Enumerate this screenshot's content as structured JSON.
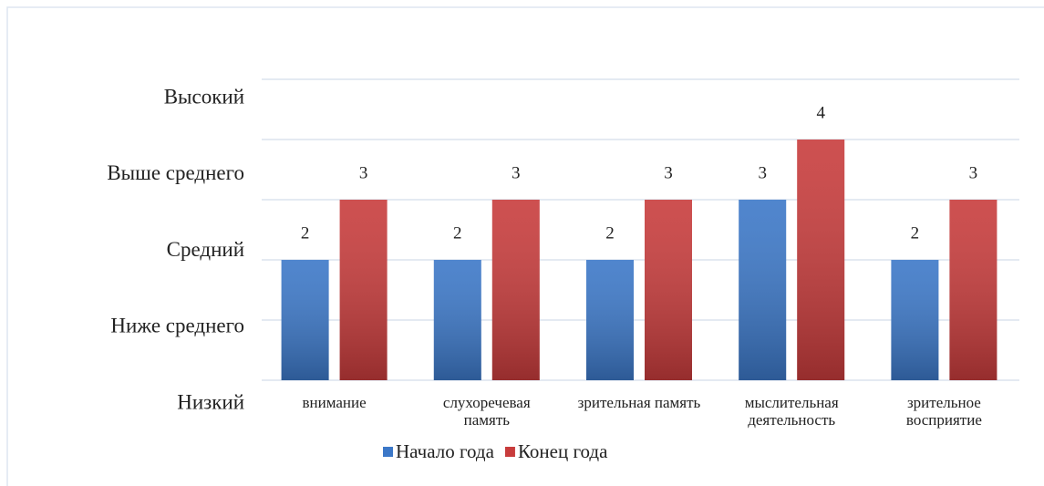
{
  "chart_data": {
    "type": "bar",
    "categories": [
      "внимание",
      "слухоречевая память",
      "зрительная память",
      "мыслительная деятельность",
      "зрительное восприятие"
    ],
    "series": [
      {
        "name": "Начало года",
        "color": "#3c78c8",
        "values": [
          2,
          2,
          2,
          3,
          2
        ]
      },
      {
        "name": "Конец года",
        "color": "#c83c3c",
        "values": [
          3,
          3,
          3,
          4,
          3
        ]
      }
    ],
    "ylim": [
      0,
      5
    ],
    "yticks": [
      {
        "value": 0,
        "label": "Низкий"
      },
      {
        "value": 1,
        "label": "Ниже среднего"
      },
      {
        "value": 2,
        "label": "Средний"
      },
      {
        "value": 3,
        "label": "Выше среднего"
      },
      {
        "value": 4,
        "label": "Высокий"
      }
    ],
    "grid": true,
    "legend": "bottom"
  }
}
